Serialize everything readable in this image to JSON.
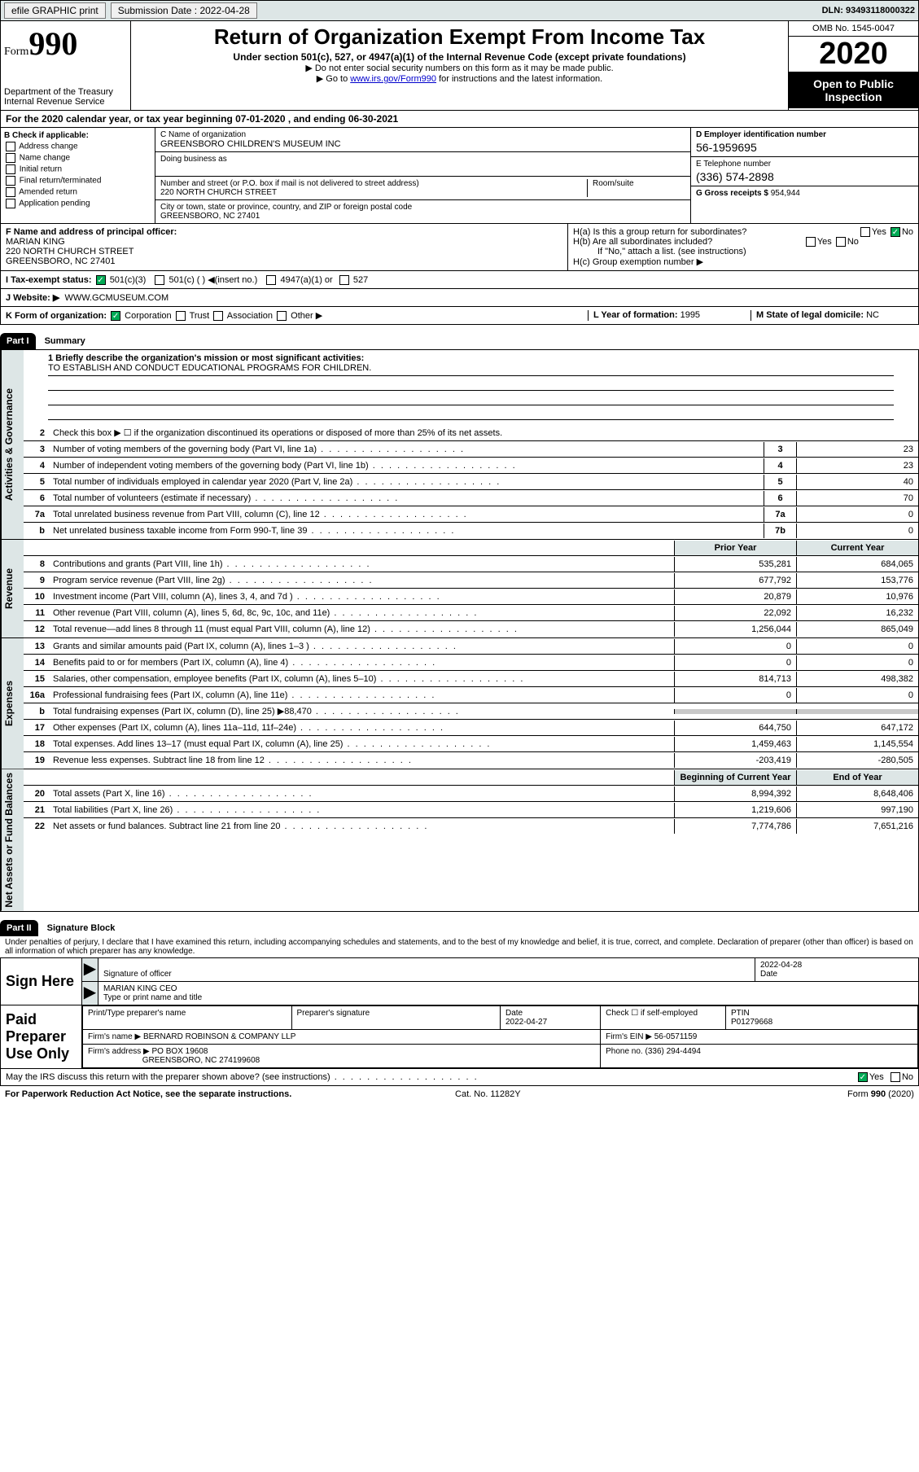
{
  "topbar": {
    "efile": "efile GRAPHIC print",
    "submission_label": "Submission Date :",
    "submission_date": "2022-04-28",
    "dln_label": "DLN:",
    "dln": "93493118000322"
  },
  "header": {
    "form_label": "Form",
    "form_num": "990",
    "dept": "Department of the Treasury Internal Revenue Service",
    "title": "Return of Organization Exempt From Income Tax",
    "sub": "Under section 501(c), 527, or 4947(a)(1) of the Internal Revenue Code (except private foundations)",
    "note1": "▶ Do not enter social security numbers on this form as it may be made public.",
    "note2_a": "▶ Go to ",
    "note2_link": "www.irs.gov/Form990",
    "note2_b": " for instructions and the latest information.",
    "omb": "OMB No. 1545-0047",
    "year": "2020",
    "open": "Open to Public Inspection"
  },
  "period": "For the 2020 calendar year, or tax year beginning 07-01-2020   , and ending 06-30-2021",
  "checkB": {
    "title": "B Check if applicable:",
    "items": [
      "Address change",
      "Name change",
      "Initial return",
      "Final return/terminated",
      "Amended return",
      "Application pending"
    ]
  },
  "entity": {
    "name_label": "C Name of organization",
    "name": "GREENSBORO CHILDREN'S MUSEUM INC",
    "dba_label": "Doing business as",
    "addr_label": "Number and street (or P.O. box if mail is not delivered to street address)",
    "room_label": "Room/suite",
    "addr": "220 NORTH CHURCH STREET",
    "city_label": "City or town, state or province, country, and ZIP or foreign postal code",
    "city": "GREENSBORO, NC  27401",
    "ein_label": "D Employer identification number",
    "ein": "56-1959695",
    "phone_label": "E Telephone number",
    "phone": "(336) 574-2898",
    "gross_label": "G Gross receipts $",
    "gross": "954,944"
  },
  "officer": {
    "label": "F  Name and address of principal officer:",
    "name": "MARIAN KING",
    "addr": "220 NORTH CHURCH STREET\nGREENSBORO, NC  27401"
  },
  "groupH": {
    "ha": "H(a)  Is this a group return for subordinates?",
    "hb": "H(b)  Are all subordinates included?",
    "hnote": "If \"No,\" attach a list. (see instructions)",
    "hc": "H(c)  Group exemption number ▶"
  },
  "status": {
    "label": "I   Tax-exempt status:",
    "c3": "501(c)(3)",
    "cx": "501(c) (  ) ◀(insert no.)",
    "a1": "4947(a)(1) or",
    "s527": "527"
  },
  "website": {
    "label": "J   Website: ▶",
    "value": "WWW.GCMUSEUM.COM"
  },
  "korg": {
    "label": "K Form of organization:",
    "corp": "Corporation",
    "trust": "Trust",
    "assoc": "Association",
    "other": "Other ▶",
    "yof_label": "L Year of formation:",
    "yof": "1995",
    "dom_label": "M State of legal domicile:",
    "dom": "NC"
  },
  "part1": {
    "hdr": "Part I",
    "title": "Summary"
  },
  "mission": {
    "q": "1   Briefly describe the organization's mission or most significant activities:",
    "text": "TO ESTABLISH AND CONDUCT EDUCATIONAL PROGRAMS FOR CHILDREN."
  },
  "gov": {
    "l2": "Check this box ▶ ☐  if the organization discontinued its operations or disposed of more than 25% of its net assets.",
    "rows": [
      {
        "n": "3",
        "d": "Number of voting members of the governing body (Part VI, line 1a)",
        "c": "3",
        "v": "23"
      },
      {
        "n": "4",
        "d": "Number of independent voting members of the governing body (Part VI, line 1b)",
        "c": "4",
        "v": "23"
      },
      {
        "n": "5",
        "d": "Total number of individuals employed in calendar year 2020 (Part V, line 2a)",
        "c": "5",
        "v": "40"
      },
      {
        "n": "6",
        "d": "Total number of volunteers (estimate if necessary)",
        "c": "6",
        "v": "70"
      },
      {
        "n": "7a",
        "d": "Total unrelated business revenue from Part VIII, column (C), line 12",
        "c": "7a",
        "v": "0"
      },
      {
        "n": "b",
        "d": "Net unrelated business taxable income from Form 990-T, line 39",
        "c": "7b",
        "v": "0"
      }
    ],
    "vlabel": "Activities & Governance"
  },
  "twocol_hdr": {
    "prior": "Prior Year",
    "current": "Current Year"
  },
  "revenue": {
    "vlabel": "Revenue",
    "rows": [
      {
        "n": "8",
        "d": "Contributions and grants (Part VIII, line 1h)",
        "p": "535,281",
        "c": "684,065"
      },
      {
        "n": "9",
        "d": "Program service revenue (Part VIII, line 2g)",
        "p": "677,792",
        "c": "153,776"
      },
      {
        "n": "10",
        "d": "Investment income (Part VIII, column (A), lines 3, 4, and 7d )",
        "p": "20,879",
        "c": "10,976"
      },
      {
        "n": "11",
        "d": "Other revenue (Part VIII, column (A), lines 5, 6d, 8c, 9c, 10c, and 11e)",
        "p": "22,092",
        "c": "16,232"
      },
      {
        "n": "12",
        "d": "Total revenue—add lines 8 through 11 (must equal Part VIII, column (A), line 12)",
        "p": "1,256,044",
        "c": "865,049"
      }
    ]
  },
  "expenses": {
    "vlabel": "Expenses",
    "rows": [
      {
        "n": "13",
        "d": "Grants and similar amounts paid (Part IX, column (A), lines 1–3 )",
        "p": "0",
        "c": "0"
      },
      {
        "n": "14",
        "d": "Benefits paid to or for members (Part IX, column (A), line 4)",
        "p": "0",
        "c": "0"
      },
      {
        "n": "15",
        "d": "Salaries, other compensation, employee benefits (Part IX, column (A), lines 5–10)",
        "p": "814,713",
        "c": "498,382"
      },
      {
        "n": "16a",
        "d": "Professional fundraising fees (Part IX, column (A), line 11e)",
        "p": "0",
        "c": "0"
      },
      {
        "n": "b",
        "d": "Total fundraising expenses (Part IX, column (D), line 25) ▶88,470",
        "p": "",
        "c": "",
        "grey": true
      },
      {
        "n": "17",
        "d": "Other expenses (Part IX, column (A), lines 11a–11d, 11f–24e)",
        "p": "644,750",
        "c": "647,172"
      },
      {
        "n": "18",
        "d": "Total expenses. Add lines 13–17 (must equal Part IX, column (A), line 25)",
        "p": "1,459,463",
        "c": "1,145,554"
      },
      {
        "n": "19",
        "d": "Revenue less expenses. Subtract line 18 from line 12",
        "p": "-203,419",
        "c": "-280,505"
      }
    ]
  },
  "netassets": {
    "vlabel": "Net Assets or Fund Balances",
    "hdr": {
      "b": "Beginning of Current Year",
      "e": "End of Year"
    },
    "rows": [
      {
        "n": "20",
        "d": "Total assets (Part X, line 16)",
        "p": "8,994,392",
        "c": "8,648,406"
      },
      {
        "n": "21",
        "d": "Total liabilities (Part X, line 26)",
        "p": "1,219,606",
        "c": "997,190"
      },
      {
        "n": "22",
        "d": "Net assets or fund balances. Subtract line 21 from line 20",
        "p": "7,774,786",
        "c": "7,651,216"
      }
    ]
  },
  "part2": {
    "hdr": "Part II",
    "title": "Signature Block"
  },
  "sig": {
    "decl": "Under penalties of perjury, I declare that I have examined this return, including accompanying schedules and statements, and to the best of my knowledge and belief, it is true, correct, and complete. Declaration of preparer (other than officer) is based on all information of which preparer has any knowledge.",
    "sign_here": "Sign Here",
    "sig_of": "Signature of officer",
    "date_lbl": "Date",
    "date_v": "2022-04-28",
    "name": "MARIAN KING CEO",
    "name_lbl": "Type or print name and title",
    "paid": "Paid Preparer Use Only",
    "prep_name_lbl": "Print/Type preparer's name",
    "prep_sig_lbl": "Preparer's signature",
    "prep_date_lbl": "Date",
    "prep_date": "2022-04-27",
    "chk_lbl": "Check ☐ if self-employed",
    "ptin_lbl": "PTIN",
    "ptin": "P01279668",
    "firm_name_lbl": "Firm's name     ▶",
    "firm_name": "BERNARD ROBINSON & COMPANY LLP",
    "firm_ein_lbl": "Firm's EIN ▶",
    "firm_ein": "56-0571159",
    "firm_addr_lbl": "Firm's address ▶",
    "firm_addr1": "PO BOX 19608",
    "firm_addr2": "GREENSBORO, NC  274199608",
    "firm_phone_lbl": "Phone no.",
    "firm_phone": "(336) 294-4494",
    "discuss": "May the IRS discuss this return with the preparer shown above? (see instructions)",
    "yes": "Yes",
    "no": "No"
  },
  "footer": {
    "l": "For Paperwork Reduction Act Notice, see the separate instructions.",
    "m": "Cat. No. 11282Y",
    "r": "Form 990 (2020)"
  }
}
